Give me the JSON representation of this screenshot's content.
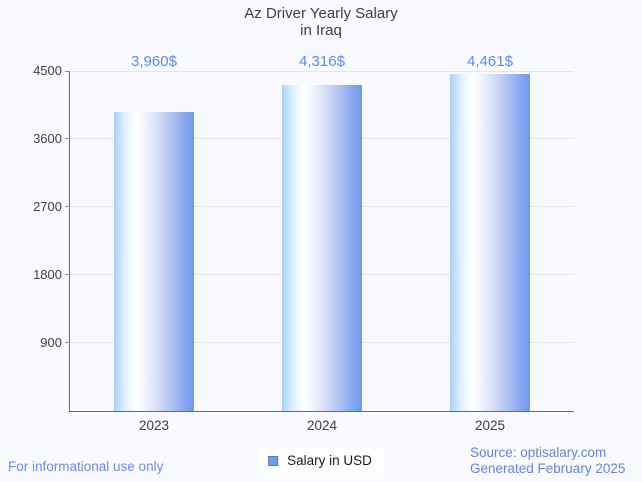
{
  "title": {
    "line1": "Az Driver Yearly Salary",
    "line2": "in Iraq"
  },
  "chart_data": {
    "type": "bar",
    "title": "Az Driver Yearly Salary in Iraq",
    "categories": [
      "2023",
      "2024",
      "2025"
    ],
    "series": [
      {
        "name": "Salary in USD",
        "values": [
          3960,
          4316,
          4461
        ],
        "value_labels": [
          "3,960$",
          "4,316$",
          "4,461$"
        ]
      }
    ],
    "xlabel": "",
    "ylabel": "",
    "ylim": [
      0,
      4500
    ],
    "yticks": [
      900,
      1800,
      2700,
      3600,
      4500
    ],
    "grid": true,
    "legend_position": "bottom",
    "colors": {
      "bar_gradient_left": "#a7d2fb",
      "bar_gradient_mid": "#ffffff",
      "bar_gradient_right": "#6e99ee",
      "value_label": "#5f8ce4",
      "gridline": "#e4e7eb",
      "axis": "#666a6e",
      "tick_text": "#424242",
      "title_text": "#3c4043",
      "footer_link": "#6b8eea"
    }
  },
  "legend": {
    "label": "Salary in USD",
    "swatch_icon": "blue-square-icon"
  },
  "footer": {
    "note": "For informational use only",
    "source_line1": "Source: optisalary.com",
    "source_line2": "Generated February 2025"
  }
}
